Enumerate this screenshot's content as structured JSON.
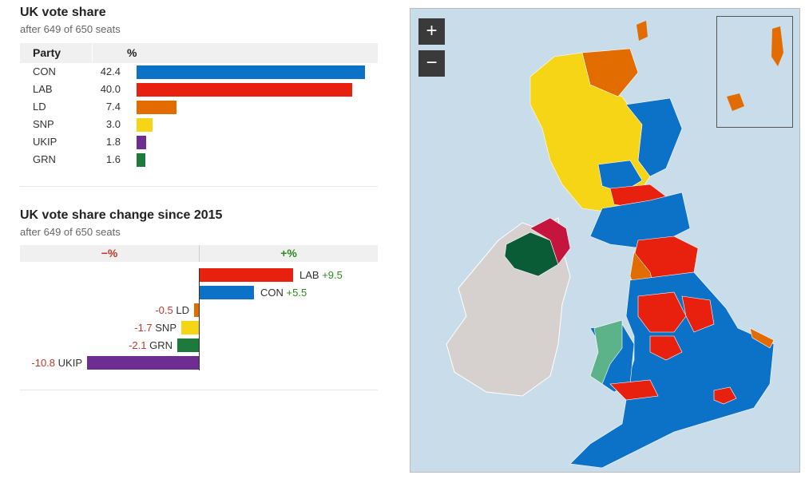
{
  "vote_share": {
    "title": "UK vote share",
    "subtitle": "after 649 of 650 seats",
    "col_party": "Party",
    "col_pct": "%",
    "rows": [
      {
        "party": "CON",
        "value": "42.4",
        "pct": 42.4,
        "color": "#0b72c7"
      },
      {
        "party": "LAB",
        "value": "40.0",
        "pct": 40.0,
        "color": "#e8210f"
      },
      {
        "party": "LD",
        "value": "7.4",
        "pct": 7.4,
        "color": "#e36c00"
      },
      {
        "party": "SNP",
        "value": "3.0",
        "pct": 3.0,
        "color": "#f5d516"
      },
      {
        "party": "UKIP",
        "value": "1.8",
        "pct": 1.8,
        "color": "#6e2d91"
      },
      {
        "party": "GRN",
        "value": "1.6",
        "pct": 1.6,
        "color": "#1e7a3c"
      }
    ]
  },
  "change": {
    "title": "UK vote share change since 2015",
    "subtitle": "after 649 of 650 seats",
    "neg_header": "−%",
    "pos_header": "+%",
    "rows": [
      {
        "party": "LAB",
        "change": 9.5,
        "label_value": "+9.5",
        "color": "#e8210f"
      },
      {
        "party": "CON",
        "change": 5.5,
        "label_value": "+5.5",
        "color": "#0b72c7"
      },
      {
        "party": "LD",
        "change": -0.5,
        "label_value": "-0.5",
        "color": "#e36c00"
      },
      {
        "party": "SNP",
        "change": -1.7,
        "label_value": "-1.7",
        "color": "#f5d516"
      },
      {
        "party": "GRN",
        "change": -2.1,
        "label_value": "-2.1",
        "color": "#1e7a3c"
      },
      {
        "party": "UKIP",
        "change": -10.8,
        "label_value": "-10.8",
        "color": "#6e2d91"
      }
    ]
  },
  "map": {
    "zoom_in": "+",
    "zoom_out": "−",
    "sea_color": "#c8dcea",
    "ireland_color": "#d6d1cf",
    "colors": {
      "con": "#0b72c7",
      "lab": "#e8210f",
      "ld": "#e36c00",
      "snp": "#f5d516",
      "plaid": "#5cb38a",
      "ni_green": "#0a5c36",
      "ni_red": "#c4153f"
    }
  }
}
